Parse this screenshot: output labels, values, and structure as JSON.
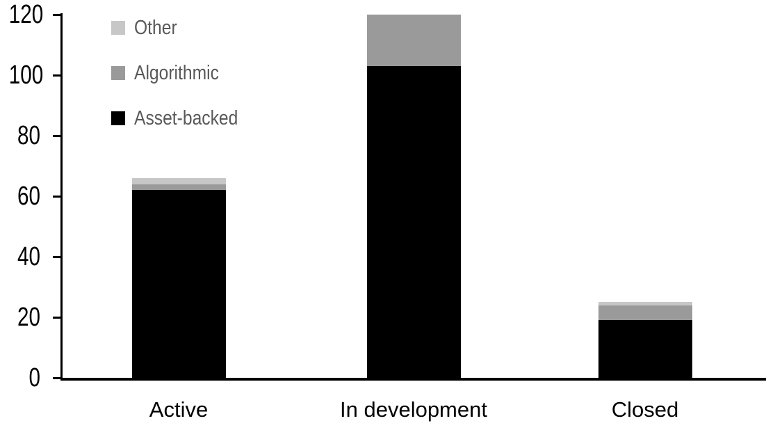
{
  "chart_data": {
    "type": "bar",
    "stacked": true,
    "title": "",
    "xlabel": "",
    "ylabel": "",
    "categories": [
      "Active",
      "In development",
      "Closed"
    ],
    "series": [
      {
        "name": "Asset-backed",
        "color": "#000000",
        "values": [
          62,
          103,
          19
        ]
      },
      {
        "name": "Algorithmic",
        "color": "#9a9a9a",
        "values": [
          2,
          17,
          5
        ]
      },
      {
        "name": "Other",
        "color": "#c7c7c7",
        "values": [
          2,
          0,
          1
        ]
      }
    ],
    "stack_totals": [
      66,
      120,
      25
    ],
    "ylim": [
      0,
      120
    ],
    "yticks": [
      0,
      20,
      40,
      60,
      80,
      100,
      120
    ],
    "grid": false,
    "legend": {
      "position": "top-left",
      "items": [
        {
          "label": "Other",
          "color": "#c7c7c7"
        },
        {
          "label": "Algorithmic",
          "color": "#9a9a9a"
        },
        {
          "label": "Asset-backed",
          "color": "#000000"
        }
      ]
    },
    "axis_color": "#000000",
    "axis_text_color": "#000000",
    "legend_text_color": "#595959",
    "background_color": "#ffffff"
  }
}
